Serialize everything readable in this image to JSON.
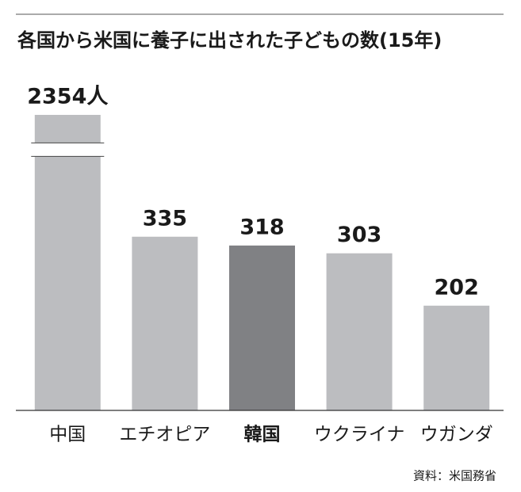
{
  "chart_data": {
    "type": "bar",
    "title": "各国から米国に養子に出された子どもの数(15年)",
    "categories": [
      "中国",
      "エチオピア",
      "韓国",
      "ウクライナ",
      "ウガンダ"
    ],
    "values": [
      2354,
      335,
      318,
      303,
      202
    ],
    "value_labels": [
      "2354人",
      "335",
      "318",
      "303",
      "202"
    ],
    "colors": [
      "#bcbdc0",
      "#bcbdc0",
      "#808184",
      "#bcbdc0",
      "#bcbdc0"
    ],
    "highlight": 2,
    "ylim": [
      0,
      2354
    ],
    "axis_break": [
      490,
      2300
    ],
    "source": "資料：米国務省"
  }
}
